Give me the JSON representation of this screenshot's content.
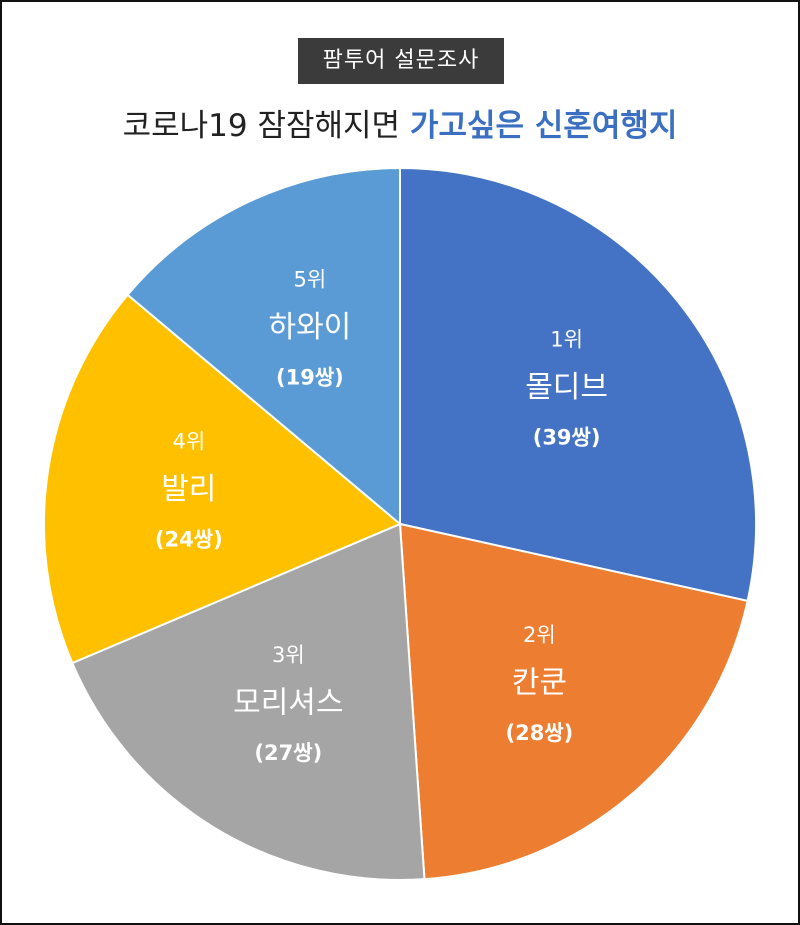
{
  "badge": "팜투어 설문조사",
  "title": {
    "prefix": "코로나19 잠잠해지면 ",
    "highlight": "가고싶은 신혼여행지"
  },
  "chart_data": {
    "type": "pie",
    "total_unit": "쌍",
    "slices": [
      {
        "rank": "1위",
        "name": "몰디브",
        "value": 39,
        "count_label": "(39쌍)",
        "color": "#4472c4"
      },
      {
        "rank": "2위",
        "name": "칸쿤",
        "value": 28,
        "count_label": "(28쌍)",
        "color": "#ed7d31"
      },
      {
        "rank": "3위",
        "name": "모리셔스",
        "value": 27,
        "count_label": "(27쌍)",
        "color": "#a5a5a5"
      },
      {
        "rank": "4위",
        "name": "발리",
        "value": 24,
        "count_label": "(24쌍)",
        "color": "#ffc000"
      },
      {
        "rank": "5위",
        "name": "하와이",
        "value": 19,
        "count_label": "(19쌍)",
        "color": "#5b9bd5"
      }
    ]
  }
}
